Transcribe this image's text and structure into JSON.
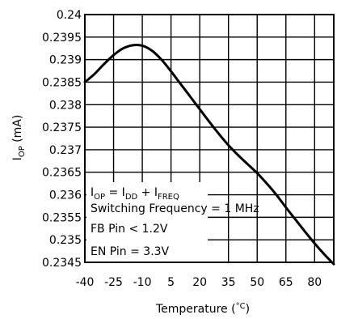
{
  "chart_data": {
    "type": "line",
    "x_tick_labels": [
      "-40",
      "-25",
      "-10",
      "5",
      "20",
      "35",
      "50",
      "65",
      "80"
    ],
    "x_ticks": [
      -40,
      -25,
      -10,
      5,
      20,
      35,
      50,
      65,
      80
    ],
    "y_tick_labels": [
      "0.2345",
      "0.235",
      "0.2355",
      "0.236",
      "0.2365",
      "0.237",
      "0.2375",
      "0.238",
      "0.2385",
      "0.239",
      "0.2395",
      "0.24"
    ],
    "y_ticks": [
      0.2345,
      0.235,
      0.2355,
      0.236,
      0.2365,
      0.237,
      0.2375,
      0.238,
      0.2385,
      0.239,
      0.2395,
      0.24
    ],
    "xlim": [
      -40,
      90
    ],
    "ylim": [
      0.2345,
      0.24
    ],
    "grid": true,
    "xlabel": {
      "main": "Temperature (",
      "unit": "°C",
      "close": ")"
    },
    "ylabel": {
      "main": "I",
      "sub": "OP",
      "rest": " (mA)"
    },
    "annotations": {
      "formula": {
        "a": "I",
        "a_sub": "OP",
        "eq": " = I",
        "b_sub": "DD",
        "plus": " + I",
        "c_sub": "FREQ"
      },
      "line2": "Switching Frequency = 1 MHz",
      "line3": "FB Pin < 1.2V",
      "line4": "EN Pin = 3.3V"
    },
    "series": [
      {
        "x": [
          -40,
          -35,
          -30,
          -25,
          -20,
          -15,
          -10,
          -5,
          0,
          5,
          10,
          15,
          20,
          25,
          30,
          35,
          40,
          45,
          50,
          55,
          60,
          65,
          70,
          75,
          80,
          85,
          90
        ],
        "y": [
          0.2385,
          0.23868,
          0.2389,
          0.2391,
          0.23925,
          0.23932,
          0.23931,
          0.2392,
          0.239,
          0.23874,
          0.23846,
          0.23818,
          0.2379,
          0.23762,
          0.23735,
          0.2371,
          0.23688,
          0.23668,
          0.23648,
          0.23625,
          0.236,
          0.23572,
          0.23545,
          0.23518,
          0.23492,
          0.23468,
          0.23446
        ]
      }
    ]
  }
}
